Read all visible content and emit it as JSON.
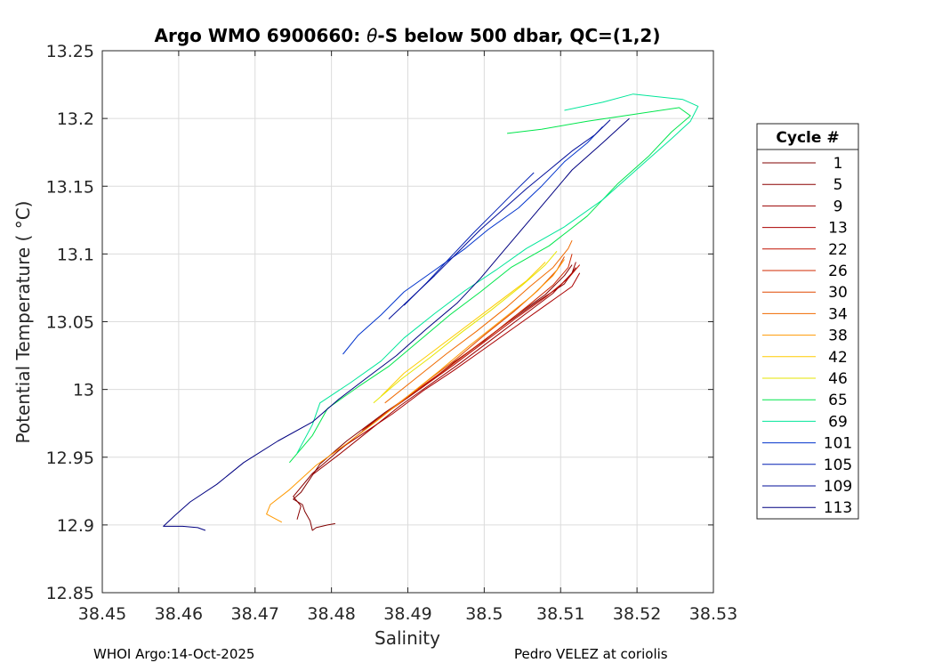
{
  "chart_data": {
    "type": "line",
    "title_prefix": "Argo WMO 6900660: ",
    "title_theta": "θ",
    "title_suffix": "-S below 500 dbar,  QC=(1,2)",
    "xlabel": "Salinity",
    "ylabel": "Potential Temperature ( °C)",
    "xlim": [
      38.45,
      38.53
    ],
    "ylim": [
      12.85,
      13.25
    ],
    "xticks": [
      38.45,
      38.46,
      38.47,
      38.48,
      38.49,
      38.5,
      38.51,
      38.52,
      38.53
    ],
    "xtick_labels": [
      "38.45",
      "38.46",
      "38.47",
      "38.48",
      "38.49",
      "38.5",
      "38.51",
      "38.52",
      "38.53"
    ],
    "yticks": [
      12.85,
      12.9,
      12.95,
      13.0,
      13.05,
      13.1,
      13.15,
      13.2,
      13.25
    ],
    "ytick_labels": [
      "12.85",
      "12.9",
      "12.95",
      "13",
      "13.05",
      "13.1",
      "13.15",
      "13.2",
      "13.25"
    ],
    "grid": true,
    "legend_title": "Cycle #",
    "legend_position": "right",
    "series": [
      {
        "name": "1",
        "color": "#800000",
        "points": [
          [
            38.4805,
            12.901
          ],
          [
            38.4795,
            12.9
          ],
          [
            38.478,
            12.898
          ],
          [
            38.4775,
            12.896
          ],
          [
            38.4772,
            12.903
          ],
          [
            38.4765,
            12.91
          ],
          [
            38.4762,
            12.915
          ],
          [
            38.475,
            12.919
          ],
          [
            38.476,
            12.924
          ],
          [
            38.4785,
            12.945
          ],
          [
            38.482,
            12.962
          ],
          [
            38.487,
            12.983
          ],
          [
            38.492,
            13.002
          ],
          [
            38.496,
            13.02
          ],
          [
            38.5,
            13.036
          ],
          [
            38.504,
            13.054
          ],
          [
            38.508,
            13.07
          ],
          [
            38.5105,
            13.084
          ],
          [
            38.5115,
            13.092
          ]
        ]
      },
      {
        "name": "5",
        "color": "#8a0000",
        "points": [
          [
            38.4755,
            12.904
          ],
          [
            38.476,
            12.914
          ],
          [
            38.475,
            12.921
          ],
          [
            38.4775,
            12.938
          ],
          [
            38.481,
            12.955
          ],
          [
            38.486,
            12.978
          ],
          [
            38.491,
            12.998
          ],
          [
            38.495,
            13.015
          ],
          [
            38.499,
            13.032
          ],
          [
            38.503,
            13.049
          ],
          [
            38.507,
            13.065
          ],
          [
            38.5105,
            13.078
          ],
          [
            38.512,
            13.09
          ]
        ]
      },
      {
        "name": "9",
        "color": "#990000",
        "points": [
          [
            38.4775,
            12.937
          ],
          [
            38.481,
            12.952
          ],
          [
            38.485,
            12.97
          ],
          [
            38.489,
            12.988
          ],
          [
            38.493,
            13.004
          ],
          [
            38.497,
            13.02
          ],
          [
            38.501,
            13.037
          ],
          [
            38.505,
            13.054
          ],
          [
            38.509,
            13.071
          ],
          [
            38.5115,
            13.086
          ],
          [
            38.512,
            13.094
          ]
        ]
      },
      {
        "name": "13",
        "color": "#aa0000",
        "points": [
          [
            38.48,
            12.952
          ],
          [
            38.484,
            12.967
          ],
          [
            38.488,
            12.982
          ],
          [
            38.492,
            12.999
          ],
          [
            38.496,
            13.014
          ],
          [
            38.5,
            13.03
          ],
          [
            38.504,
            13.046
          ],
          [
            38.508,
            13.062
          ],
          [
            38.5115,
            13.076
          ],
          [
            38.5125,
            13.086
          ]
        ]
      },
      {
        "name": "22",
        "color": "#c01000",
        "points": [
          [
            38.484,
            12.97
          ],
          [
            38.488,
            12.986
          ],
          [
            38.492,
            13.002
          ],
          [
            38.496,
            13.018
          ],
          [
            38.5,
            13.035
          ],
          [
            38.504,
            13.052
          ],
          [
            38.508,
            13.068
          ],
          [
            38.511,
            13.082
          ],
          [
            38.5125,
            13.092
          ]
        ]
      },
      {
        "name": "26",
        "color": "#d02800",
        "points": [
          [
            38.486,
            12.978
          ],
          [
            38.49,
            12.995
          ],
          [
            38.494,
            13.011
          ],
          [
            38.498,
            13.028
          ],
          [
            38.502,
            13.045
          ],
          [
            38.506,
            13.063
          ],
          [
            38.509,
            13.077
          ],
          [
            38.511,
            13.09
          ],
          [
            38.5115,
            13.1
          ]
        ]
      },
      {
        "name": "30",
        "color": "#e04800",
        "points": [
          [
            38.488,
            12.986
          ],
          [
            38.492,
            13.004
          ],
          [
            38.496,
            13.021
          ],
          [
            38.5,
            13.04
          ],
          [
            38.504,
            13.058
          ],
          [
            38.507,
            13.073
          ],
          [
            38.5095,
            13.088
          ],
          [
            38.5105,
            13.098
          ]
        ]
      },
      {
        "name": "34",
        "color": "#f06a00",
        "points": [
          [
            38.487,
            12.99
          ],
          [
            38.491,
            13.008
          ],
          [
            38.495,
            13.026
          ],
          [
            38.499,
            13.043
          ],
          [
            38.503,
            13.061
          ],
          [
            38.506,
            13.076
          ],
          [
            38.509,
            13.09
          ],
          [
            38.511,
            13.104
          ],
          [
            38.5115,
            13.11
          ]
        ]
      },
      {
        "name": "38",
        "color": "#ff9900",
        "points": [
          [
            38.4735,
            12.902
          ],
          [
            38.4715,
            12.908
          ],
          [
            38.472,
            12.915
          ],
          [
            38.4745,
            12.926
          ],
          [
            38.478,
            12.944
          ],
          [
            38.482,
            12.96
          ],
          [
            38.486,
            12.977
          ],
          [
            38.49,
            12.995
          ],
          [
            38.494,
            13.013
          ],
          [
            38.498,
            13.032
          ],
          [
            38.502,
            13.05
          ],
          [
            38.506,
            13.068
          ],
          [
            38.509,
            13.084
          ],
          [
            38.5105,
            13.096
          ]
        ]
      },
      {
        "name": "42",
        "color": "#ffcc00",
        "points": [
          [
            38.4865,
            12.995
          ],
          [
            38.4895,
            13.012
          ],
          [
            38.4935,
            13.029
          ],
          [
            38.4975,
            13.046
          ],
          [
            38.5015,
            13.063
          ],
          [
            38.5055,
            13.08
          ],
          [
            38.508,
            13.094
          ]
        ]
      },
      {
        "name": "46",
        "color": "#e6e600",
        "points": [
          [
            38.4855,
            12.99
          ],
          [
            38.489,
            13.007
          ],
          [
            38.493,
            13.024
          ],
          [
            38.497,
            13.042
          ],
          [
            38.501,
            13.059
          ],
          [
            38.505,
            13.077
          ],
          [
            38.508,
            13.092
          ],
          [
            38.5095,
            13.102
          ]
        ]
      },
      {
        "name": "65",
        "color": "#00e64c",
        "points": [
          [
            38.4745,
            12.946
          ],
          [
            38.4775,
            12.966
          ],
          [
            38.4795,
            12.986
          ],
          [
            38.4835,
            13.002
          ],
          [
            38.4875,
            13.017
          ],
          [
            38.4915,
            13.036
          ],
          [
            38.4955,
            13.055
          ],
          [
            38.4995,
            13.072
          ],
          [
            38.5035,
            13.09
          ],
          [
            38.5085,
            13.106
          ],
          [
            38.5135,
            13.128
          ],
          [
            38.5175,
            13.152
          ],
          [
            38.5215,
            13.172
          ],
          [
            38.5245,
            13.19
          ],
          [
            38.527,
            13.202
          ],
          [
            38.5255,
            13.208
          ],
          [
            38.5195,
            13.203
          ],
          [
            38.5135,
            13.198
          ],
          [
            38.5075,
            13.192
          ],
          [
            38.503,
            13.189
          ]
        ]
      },
      {
        "name": "69",
        "color": "#00e699",
        "points": [
          [
            38.4755,
            12.953
          ],
          [
            38.4775,
            12.974
          ],
          [
            38.4785,
            12.99
          ],
          [
            38.4825,
            13.005
          ],
          [
            38.4865,
            13.021
          ],
          [
            38.4895,
            13.038
          ],
          [
            38.4935,
            13.056
          ],
          [
            38.4975,
            13.073
          ],
          [
            38.5015,
            13.088
          ],
          [
            38.5055,
            13.104
          ],
          [
            38.5105,
            13.12
          ],
          [
            38.5155,
            13.14
          ],
          [
            38.5205,
            13.165
          ],
          [
            38.5245,
            13.185
          ],
          [
            38.527,
            13.198
          ],
          [
            38.528,
            13.209
          ],
          [
            38.526,
            13.214
          ],
          [
            38.5195,
            13.218
          ],
          [
            38.5155,
            13.212
          ],
          [
            38.5105,
            13.206
          ]
        ]
      },
      {
        "name": "101",
        "color": "#0033cc",
        "points": [
          [
            38.4815,
            13.026
          ],
          [
            38.4835,
            13.04
          ],
          [
            38.4865,
            13.055
          ],
          [
            38.4895,
            13.072
          ],
          [
            38.4935,
            13.088
          ],
          [
            38.4975,
            13.104
          ],
          [
            38.5005,
            13.118
          ],
          [
            38.5045,
            13.134
          ],
          [
            38.5075,
            13.15
          ],
          [
            38.5105,
            13.168
          ],
          [
            38.5135,
            13.182
          ],
          [
            38.5155,
            13.194
          ]
        ]
      },
      {
        "name": "105",
        "color": "#001fb3",
        "points": [
          [
            38.4895,
            13.062
          ],
          [
            38.4925,
            13.079
          ],
          [
            38.4955,
            13.097
          ],
          [
            38.4985,
            13.115
          ],
          [
            38.5015,
            13.132
          ],
          [
            38.5045,
            13.149
          ],
          [
            38.5065,
            13.16
          ]
        ]
      },
      {
        "name": "109",
        "color": "#000d99",
        "points": [
          [
            38.4875,
            13.052
          ],
          [
            38.4905,
            13.068
          ],
          [
            38.4935,
            13.084
          ],
          [
            38.4965,
            13.101
          ],
          [
            38.4995,
            13.118
          ],
          [
            38.5025,
            13.133
          ],
          [
            38.5055,
            13.148
          ],
          [
            38.5085,
            13.162
          ],
          [
            38.5115,
            13.176
          ],
          [
            38.5145,
            13.188
          ],
          [
            38.5165,
            13.199
          ]
        ]
      },
      {
        "name": "113",
        "color": "#000080",
        "points": [
          [
            38.4635,
            12.896
          ],
          [
            38.4625,
            12.898
          ],
          [
            38.4605,
            12.899
          ],
          [
            38.458,
            12.899
          ],
          [
            38.4595,
            12.907
          ],
          [
            38.4615,
            12.917
          ],
          [
            38.465,
            12.93
          ],
          [
            38.4685,
            12.946
          ],
          [
            38.473,
            12.962
          ],
          [
            38.4775,
            12.976
          ],
          [
            38.481,
            12.993
          ],
          [
            38.4845,
            13.008
          ],
          [
            38.4885,
            13.025
          ],
          [
            38.4925,
            13.045
          ],
          [
            38.4965,
            13.064
          ],
          [
            38.4995,
            13.082
          ],
          [
            38.5025,
            13.102
          ],
          [
            38.5055,
            13.122
          ],
          [
            38.5085,
            13.142
          ],
          [
            38.5115,
            13.162
          ],
          [
            38.5155,
            13.182
          ],
          [
            38.519,
            13.2
          ]
        ]
      }
    ]
  },
  "footer": {
    "left": "WHOI Argo:14-Oct-2025",
    "right": "Pedro VELEZ at coriolis"
  }
}
